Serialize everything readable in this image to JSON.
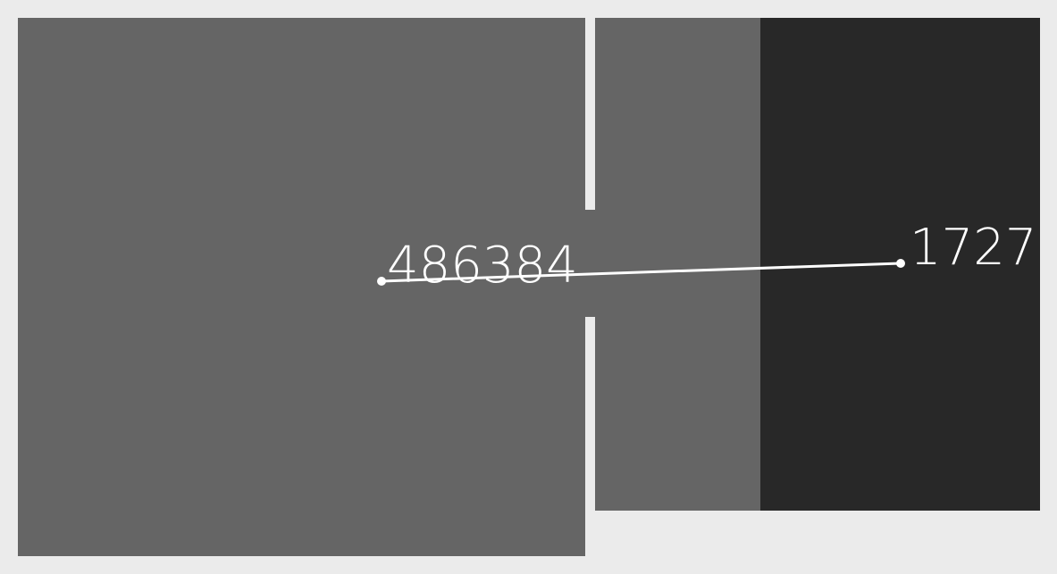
{
  "regions": [
    {
      "id": "left",
      "color": "#656565"
    },
    {
      "id": "middle",
      "color": "#656565"
    },
    {
      "id": "right",
      "color": "#282828"
    }
  ],
  "background_color": "#ebebeb",
  "connector": {
    "color": "#ffffff",
    "from_label": "486384",
    "to_label": "1727"
  }
}
